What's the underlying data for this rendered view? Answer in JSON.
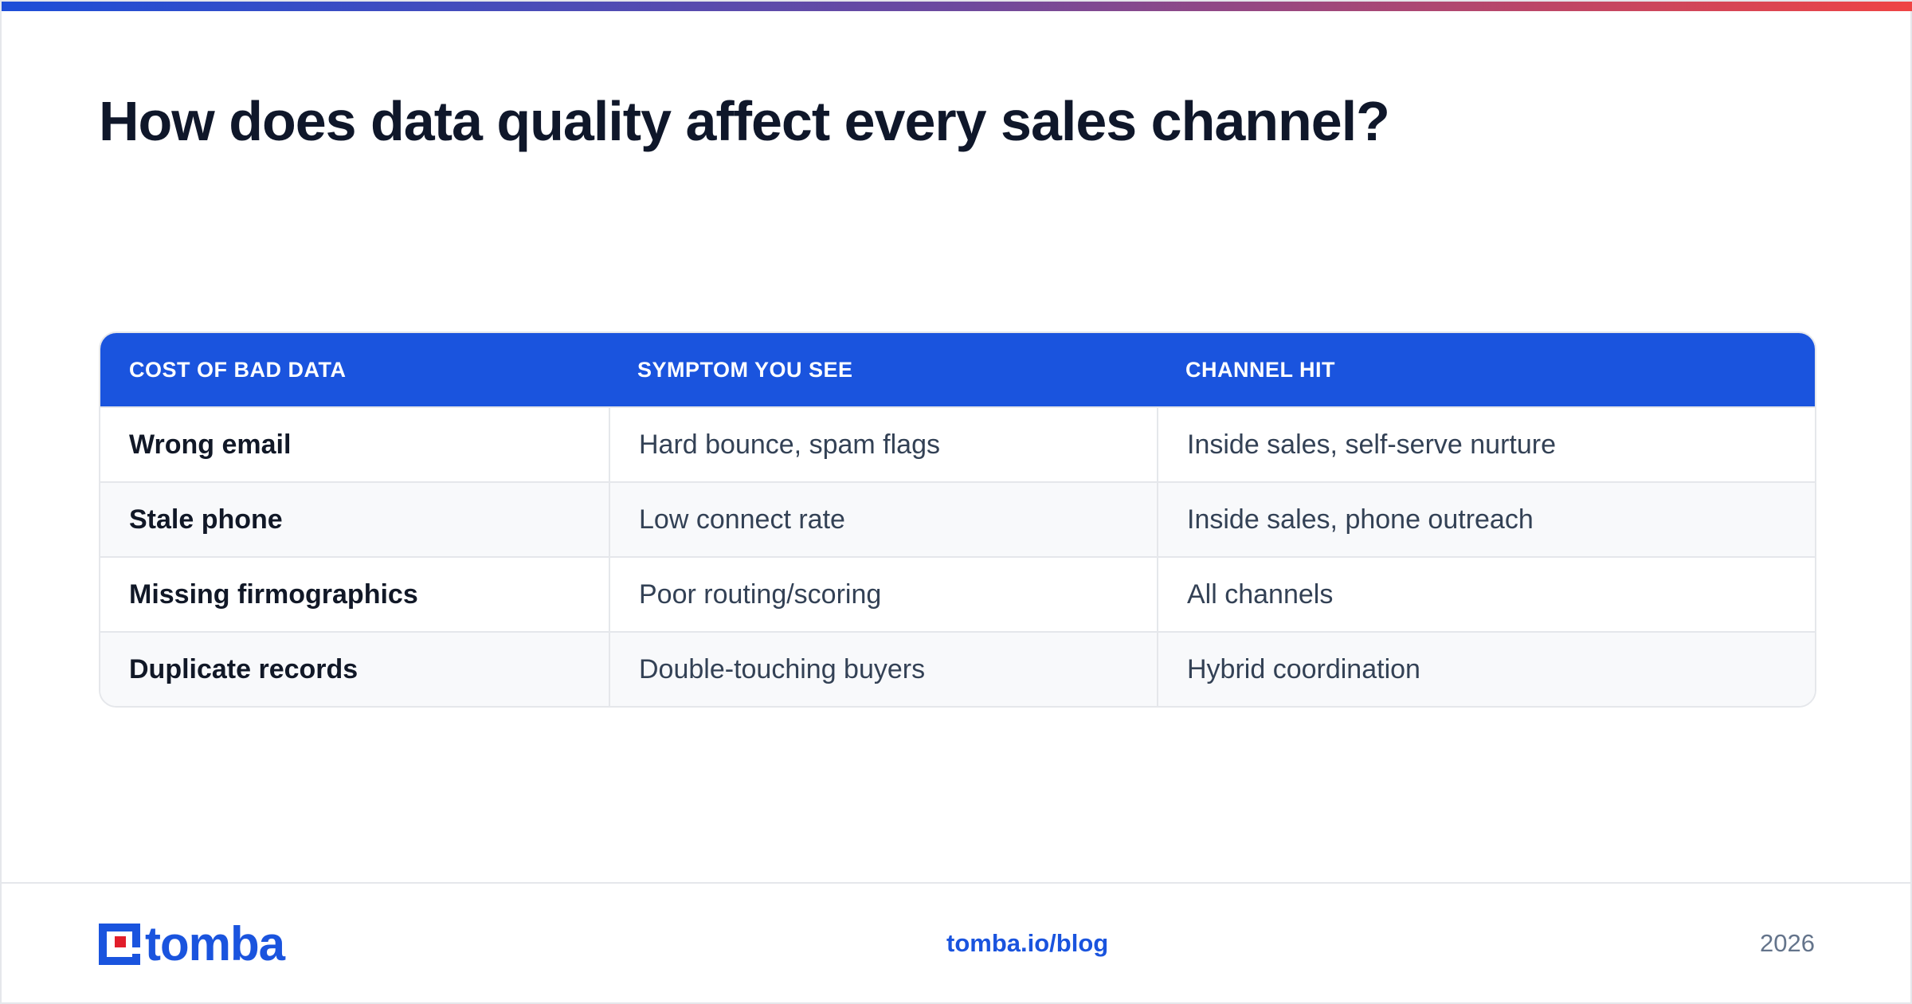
{
  "title": "How does data quality affect every sales channel?",
  "table": {
    "headers": [
      "COST OF BAD DATA",
      "SYMPTOM YOU SEE",
      "CHANNEL HIT"
    ],
    "rows": [
      [
        "Wrong email",
        "Hard bounce, spam flags",
        "Inside sales, self-serve nurture"
      ],
      [
        "Stale phone",
        "Low connect rate",
        "Inside sales, phone outreach"
      ],
      [
        "Missing firmographics",
        "Poor routing/scoring",
        "All channels"
      ],
      [
        "Duplicate records",
        "Double-touching buyers",
        "Hybrid coordination"
      ]
    ]
  },
  "footer": {
    "logo_text": "tomba",
    "link": "tomba.io/blog",
    "year": "2026"
  },
  "colors": {
    "accent": "#1a54de",
    "logo_red": "#e11d2a",
    "gradient_start": "#1d4ed8",
    "gradient_end": "#ef4444"
  }
}
